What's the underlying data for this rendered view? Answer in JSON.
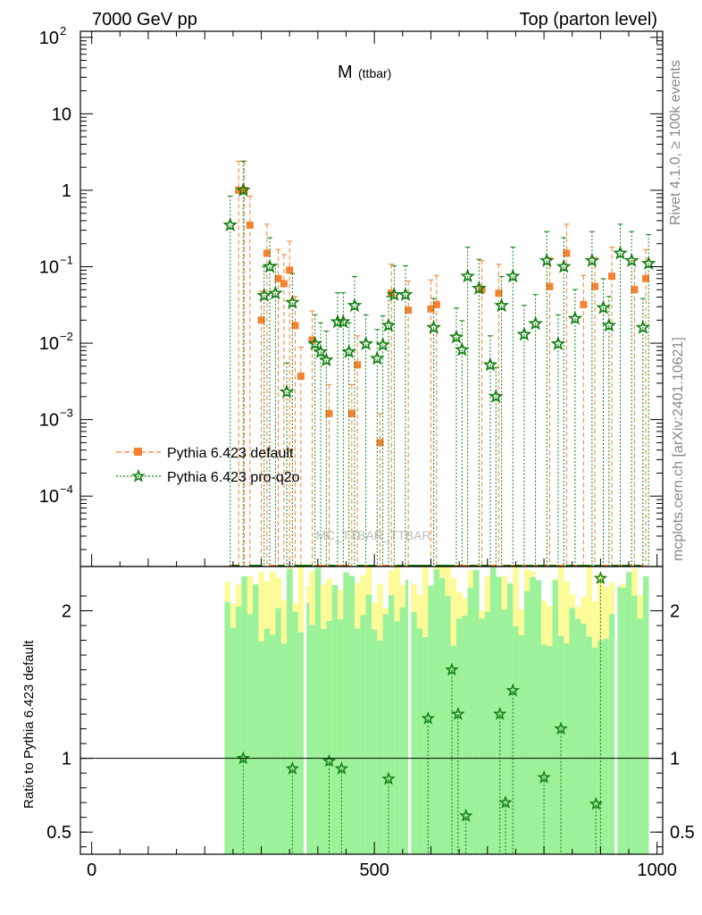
{
  "header": {
    "left": "7000 GeV pp",
    "right": "Top (parton level)"
  },
  "side_text": {
    "rivet": "Rivet 4.1.0, ≥ 100k events",
    "mcplots": "mcplots.cern.ch [arXiv:2401.10621]"
  },
  "chart_data": {
    "type": "scatter",
    "title_main": "M",
    "title_sub": "(ttbar)",
    "watermark": "MC_TTBAR_TTBAR",
    "xlabel": "",
    "ylabel": "",
    "xlim": [
      -20,
      1010
    ],
    "ylim": [
      1.2e-05,
      120
    ],
    "yscale": "log",
    "x_ticks": [
      {
        "value": 0,
        "label": "0"
      },
      {
        "value": 500,
        "label": "500"
      },
      {
        "value": 1000,
        "label": "1000"
      }
    ],
    "y_ticks": [
      {
        "value": 100,
        "base": "10",
        "exp": "2"
      },
      {
        "value": 10,
        "base": "10",
        "exp": ""
      },
      {
        "value": 1,
        "base": "1",
        "exp": ""
      },
      {
        "value": 0.1,
        "base": "10",
        "exp": "−1"
      },
      {
        "value": 0.01,
        "base": "10",
        "exp": "−2"
      },
      {
        "value": 0.001,
        "base": "10",
        "exp": "−3"
      },
      {
        "value": 0.0001,
        "base": "10",
        "exp": "−4"
      }
    ],
    "legend": [
      {
        "name": "Pythia 6.423 default",
        "color": "#f58231",
        "marker": "square"
      },
      {
        "name": "Pythia 6.423 pro-q2o",
        "color": "#137e13",
        "marker": "star"
      }
    ],
    "series": [
      {
        "name": "Pythia 6.423 default",
        "color": "#f58231",
        "x": [
          250,
          260,
          270,
          280,
          290,
          300,
          310,
          320,
          330,
          340,
          350,
          360,
          370,
          380,
          390,
          400,
          410,
          420,
          430,
          440,
          450,
          460,
          470,
          480,
          490,
          500,
          510,
          520,
          530,
          540,
          550,
          560,
          570,
          580,
          590,
          600,
          610,
          620,
          630,
          640,
          650,
          660,
          670,
          680,
          690,
          700,
          710,
          720,
          730,
          740,
          750,
          760,
          770,
          780,
          790,
          800,
          810,
          820,
          830,
          840,
          850,
          860,
          870,
          880,
          890,
          900,
          910,
          920,
          930,
          940,
          950,
          960,
          970,
          980
        ],
        "y": [
          1e-05,
          1.0,
          1.0,
          0.35,
          1e-05,
          0.02,
          0.15,
          1e-05,
          0.07,
          0.06,
          0.09,
          0.017,
          0.0037,
          1e-05,
          0.011,
          1e-05,
          1e-05,
          0.0012,
          1e-05,
          1e-05,
          1e-05,
          0.0012,
          0.0052,
          1e-05,
          1e-05,
          1e-05,
          0.0005,
          1e-05,
          0.045,
          1e-05,
          1e-05,
          0.027,
          1e-05,
          1e-05,
          1e-05,
          0.028,
          0.032,
          1e-05,
          1e-05,
          1e-05,
          1e-05,
          1e-05,
          1e-05,
          1e-05,
          0.05,
          1e-05,
          1e-05,
          0.045,
          1e-05,
          1e-05,
          1e-05,
          1e-05,
          1e-05,
          1e-05,
          1e-05,
          1e-05,
          0.055,
          1e-05,
          1e-05,
          0.15,
          1e-05,
          1e-05,
          0.032,
          1e-05,
          0.055,
          1e-05,
          1e-05,
          0.075,
          1e-05,
          1e-05,
          1e-05,
          0.05,
          1e-05,
          0.07
        ]
      },
      {
        "name": "Pythia 6.423 pro-q2o",
        "color": "#137e13",
        "x": [
          245,
          255,
          268,
          285,
          295,
          305,
          315,
          325,
          335,
          345,
          355,
          365,
          375,
          385,
          395,
          405,
          415,
          425,
          435,
          445,
          455,
          465,
          475,
          485,
          495,
          505,
          515,
          525,
          535,
          545,
          555,
          565,
          575,
          585,
          595,
          605,
          615,
          625,
          635,
          645,
          655,
          665,
          675,
          685,
          695,
          705,
          715,
          725,
          735,
          745,
          755,
          765,
          775,
          785,
          795,
          805,
          815,
          825,
          835,
          845,
          855,
          865,
          875,
          885,
          895,
          905,
          915,
          925,
          935,
          945,
          955,
          965,
          975,
          985
        ],
        "y": [
          0.35,
          1e-05,
          1.0,
          1e-05,
          1e-05,
          0.042,
          0.1,
          0.045,
          1e-05,
          0.0023,
          0.034,
          1e-05,
          1e-05,
          1e-05,
          0.0098,
          0.0077,
          0.006,
          1e-05,
          0.019,
          0.019,
          0.0077,
          0.031,
          1e-05,
          0.0098,
          1e-05,
          0.0063,
          0.0095,
          0.017,
          0.043,
          1e-05,
          0.043,
          1e-05,
          1e-05,
          1e-05,
          1e-05,
          0.016,
          1e-05,
          1e-05,
          1e-05,
          0.012,
          0.0082,
          0.075,
          1e-05,
          0.052,
          1e-05,
          0.0052,
          0.002,
          0.031,
          1e-05,
          0.075,
          1e-05,
          0.013,
          1e-05,
          0.018,
          1e-05,
          0.12,
          1e-05,
          0.0098,
          0.1,
          1e-05,
          0.021,
          1e-05,
          1e-05,
          0.12,
          1e-05,
          0.029,
          0.017,
          1e-05,
          0.15,
          1e-05,
          0.12,
          1e-05,
          0.016,
          0.11
        ]
      }
    ],
    "ratio": {
      "ylabel": "Ratio to Pythia 6.423 default",
      "ylim": [
        0.35,
        2.3
      ],
      "y_ticks": [
        {
          "value": 0.5,
          "label": "0.5"
        },
        {
          "value": 1,
          "label": "1"
        },
        {
          "value": 2,
          "label": "2"
        }
      ],
      "band_x_range": [
        235,
        985
      ],
      "points_x": [
        268,
        355,
        420,
        442,
        525,
        595,
        637,
        648,
        662,
        722,
        732,
        745,
        800,
        830,
        892,
        900
      ],
      "points_y": [
        1.0,
        0.93,
        0.98,
        0.93,
        0.86,
        1.27,
        1.6,
        1.3,
        0.61,
        1.3,
        0.7,
        1.46,
        0.87,
        1.2,
        0.69,
        2.22
      ]
    }
  }
}
